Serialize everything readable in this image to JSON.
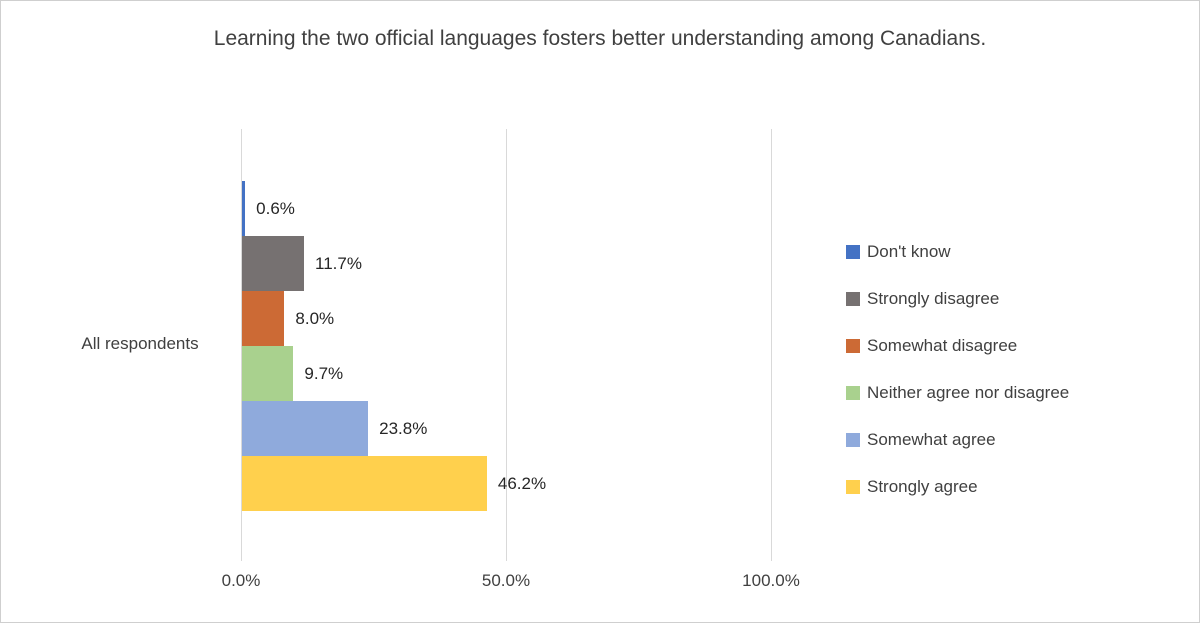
{
  "chart_data": {
    "type": "bar",
    "orientation": "horizontal",
    "title": "Learning the two official languages fosters better understanding among Canadians.",
    "categories": [
      "All respondents"
    ],
    "series": [
      {
        "name": "Don't know",
        "value": 0.6,
        "label": "0.6%",
        "color": "#4472C4"
      },
      {
        "name": "Strongly disagree",
        "value": 11.7,
        "label": "11.7%",
        "color": "#767171"
      },
      {
        "name": "Somewhat disagree",
        "value": 8.0,
        "label": "8.0%",
        "color": "#CC6A35"
      },
      {
        "name": "Neither agree nor disagree",
        "value": 9.7,
        "label": "9.7%",
        "color": "#A9D18E"
      },
      {
        "name": "Somewhat agree",
        "value": 23.8,
        "label": "23.8%",
        "color": "#8FAADC"
      },
      {
        "name": "Strongly agree",
        "value": 46.2,
        "label": "46.2%",
        "color": "#FFD04D"
      }
    ],
    "x_axis": {
      "max": 100,
      "ticks": [
        {
          "value": 0,
          "label": "0.0%"
        },
        {
          "value": 50,
          "label": "50.0%"
        },
        {
          "value": 100,
          "label": "100.0%"
        }
      ]
    },
    "legend_position": "right",
    "grid": true
  }
}
